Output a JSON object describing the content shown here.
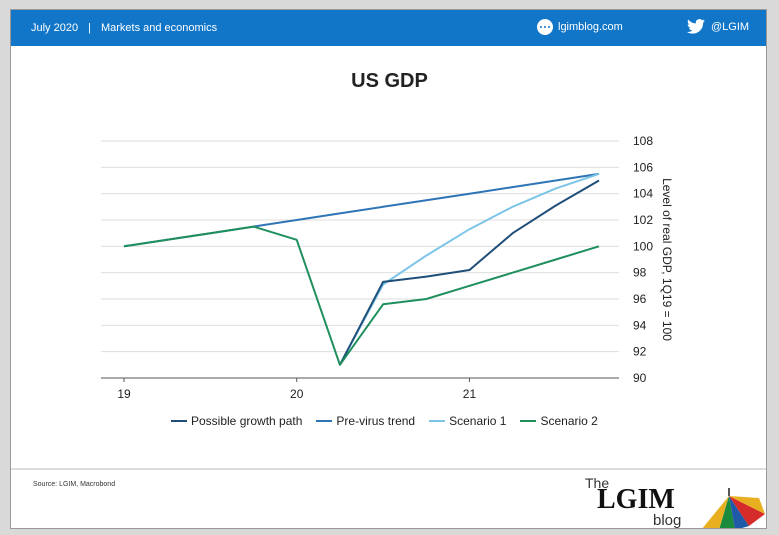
{
  "header": {
    "date": "July 2020",
    "separator": "|",
    "section": "Markets and economics",
    "site": "lgimblog.com",
    "twitter": "@LGIM",
    "site_icon": "chat-bubble-icon",
    "twitter_icon": "twitter-bird-icon",
    "bar_color": "#1276c8"
  },
  "chart_data": {
    "type": "line",
    "title": "US GDP",
    "ylabel": "Level of real GDP, 1Q19 = 100",
    "xlabel": "",
    "x_tick_labels": [
      "19",
      "20",
      "21"
    ],
    "y_ticks": [
      90,
      92,
      94,
      96,
      98,
      100,
      102,
      104,
      106,
      108
    ],
    "ylim": [
      90,
      108
    ],
    "y_axis_side": "right",
    "grid": true,
    "legend_position": "bottom",
    "x": [
      "2019-Q1",
      "2019-Q2",
      "2019-Q3",
      "2019-Q4",
      "2020-Q1",
      "2020-Q2",
      "2020-Q3",
      "2020-Q4",
      "2021-Q1",
      "2021-Q2",
      "2021-Q3",
      "2021-Q4"
    ],
    "series": [
      {
        "name": "Possible growth path",
        "color": "#1f4e79",
        "values": [
          null,
          null,
          null,
          null,
          null,
          91.0,
          97.3,
          97.7,
          98.2,
          101.0,
          103.1,
          105.0
        ]
      },
      {
        "name": "Pre-virus trend",
        "color": "#2e75b6",
        "values": [
          100.0,
          100.5,
          101.0,
          101.5,
          102.0,
          102.5,
          103.0,
          103.5,
          104.0,
          104.5,
          105.0,
          105.5
        ]
      },
      {
        "name": "Scenario 1",
        "color": "#7cc4e8",
        "values": [
          null,
          null,
          null,
          null,
          null,
          91.0,
          97.1,
          99.3,
          101.3,
          103.0,
          104.4,
          105.5
        ]
      },
      {
        "name": "Scenario 2",
        "color": "#1f8f5c",
        "values": [
          100.0,
          100.5,
          101.0,
          101.5,
          100.5,
          91.0,
          95.6,
          96.0,
          97.0,
          98.0,
          99.0,
          100.0
        ]
      }
    ]
  },
  "footer": {
    "source": "Source:  LGIM,  Macrobond",
    "logo_the": "The",
    "logo_main": "LGIM",
    "logo_blog": "blog",
    "logo_icon": "umbrella-icon"
  }
}
